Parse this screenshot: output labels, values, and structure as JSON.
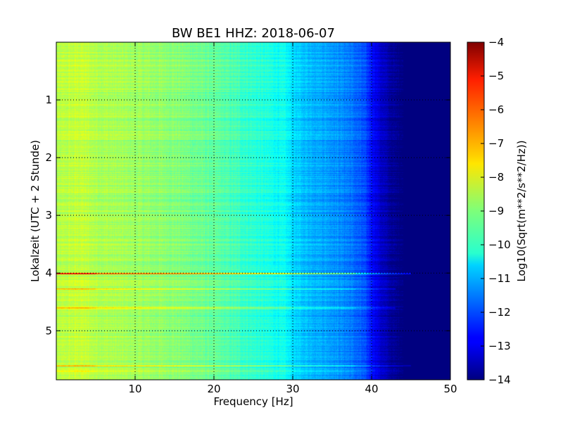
{
  "chart_data": {
    "type": "heatmap",
    "title": "BW BE1 HHZ: 2018-06-07",
    "xlabel": "Frequency [Hz]",
    "ylabel": "Lokalzeit (UTC + 2 Stunde)",
    "colorbar_label": "Log10(Sqrt(m**2/s**2/Hz))",
    "xlim": [
      0,
      50
    ],
    "ylim": [
      5.85,
      0
    ],
    "x_ticks": [
      10,
      20,
      30,
      40,
      50
    ],
    "y_ticks": [
      1,
      2,
      3,
      4,
      5
    ],
    "colorbar_ticks": [
      -4,
      -5,
      -6,
      -7,
      -8,
      -9,
      -10,
      -11,
      -12,
      -13,
      -14
    ],
    "clim": [
      -14,
      -4
    ],
    "colormap": "jet",
    "grid": true,
    "frequency_profile": {
      "x": [
        0,
        3,
        5,
        10,
        15,
        20,
        25,
        29,
        30,
        31,
        33,
        35,
        37,
        39,
        40,
        41,
        42,
        43,
        44,
        45,
        50
      ],
      "z": [
        -8.5,
        -8.3,
        -8.5,
        -8.7,
        -8.9,
        -9.3,
        -9.8,
        -10.2,
        -10.6,
        -10.8,
        -11.0,
        -11.2,
        -11.5,
        -12.0,
        -12.6,
        -13.2,
        -13.6,
        -13.9,
        -14.0,
        -14.0,
        -14.0
      ]
    },
    "bands": [
      {
        "time": 4.0,
        "delta": 2.2,
        "fmax": 45
      },
      {
        "time": 4.27,
        "delta": 1.0,
        "fmax": 43
      },
      {
        "time": 4.6,
        "delta": 1.0,
        "fmax": 43
      },
      {
        "time": 5.6,
        "delta": 1.0,
        "fmax": 45
      },
      {
        "time": 5.7,
        "delta": 0.6,
        "fmax": 44
      }
    ]
  }
}
